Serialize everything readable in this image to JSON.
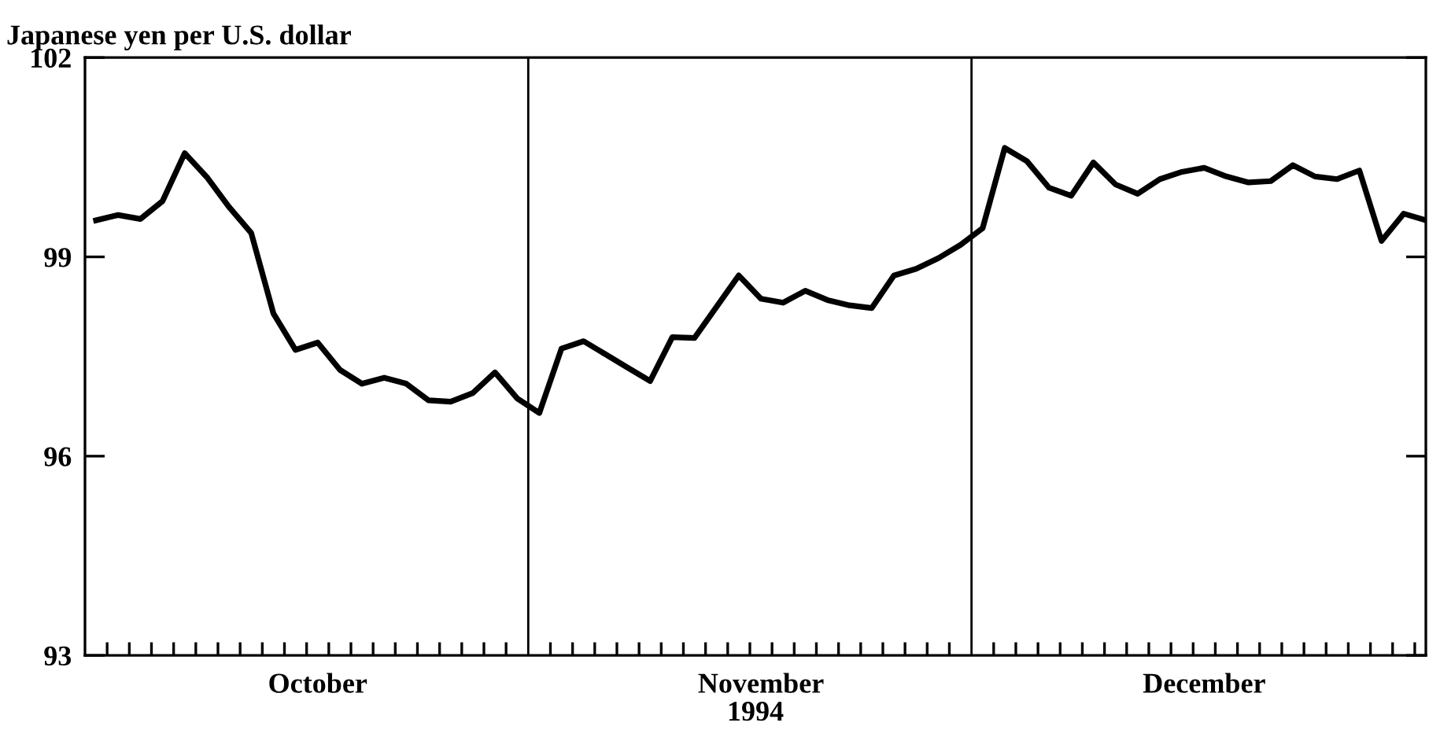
{
  "chart_data": {
    "type": "line",
    "ylabel": "Japanese yen per U.S. dollar",
    "xlabel": "1994",
    "categories": [
      null,
      null,
      null,
      null,
      null,
      null,
      null,
      null,
      null,
      null,
      "October",
      null,
      null,
      null,
      null,
      null,
      null,
      null,
      null,
      null,
      null,
      null,
      null,
      null,
      null,
      null,
      null,
      null,
      null,
      null,
      "November",
      null,
      null,
      null,
      null,
      null,
      null,
      null,
      null,
      null,
      null,
      null,
      null,
      null,
      null,
      null,
      null,
      null,
      null,
      null,
      "December",
      null,
      null,
      null,
      null,
      null,
      null,
      null,
      null,
      null,
      null
    ],
    "series": [
      {
        "color": "#000000",
        "values": [
          99.55,
          99.63,
          99.57,
          99.84,
          100.56,
          100.2,
          99.75,
          99.36,
          98.15,
          97.6,
          97.71,
          97.3,
          97.09,
          97.18,
          97.09,
          96.84,
          96.82,
          96.95,
          97.26,
          96.87,
          96.65,
          97.62,
          97.73,
          97.53,
          97.33,
          97.13,
          97.79,
          97.78,
          98.25,
          98.72,
          98.37,
          98.31,
          98.49,
          98.35,
          98.27,
          98.23,
          98.72,
          98.82,
          98.98,
          99.18,
          99.43,
          100.64,
          100.44,
          100.04,
          99.92,
          100.42,
          100.09,
          99.95,
          100.17,
          100.28,
          100.34,
          100.21,
          100.12,
          100.14,
          100.38,
          100.21,
          100.17,
          100.3,
          99.24,
          99.65,
          99.55
        ]
      }
    ],
    "ylim": [
      93,
      102
    ],
    "yticks": [
      93,
      96,
      99,
      102
    ],
    "grid": false,
    "marker": "none",
    "line_style": "solid"
  }
}
